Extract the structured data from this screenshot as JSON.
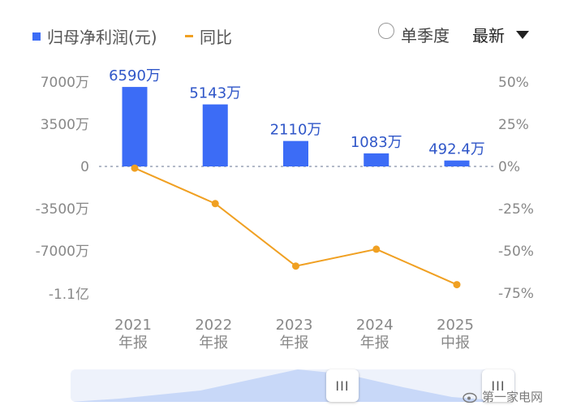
{
  "legend": {
    "bar_label": "归母净利润(元)",
    "line_label": "同比"
  },
  "controls": {
    "quarter_toggle_label": "单季度",
    "sort_value": "最新"
  },
  "slider": {
    "handle_glyph": "III"
  },
  "watermark": {
    "text": "第一家电网"
  },
  "colors": {
    "bar": "#3c6cf6",
    "line": "#f0a022",
    "axis_text": "#888888"
  },
  "chart_data": {
    "type": "bar",
    "categories": [
      [
        "2021",
        "年报"
      ],
      [
        "2022",
        "年报"
      ],
      [
        "2023",
        "年报"
      ],
      [
        "2024",
        "年报"
      ],
      [
        "2025",
        "中报"
      ]
    ],
    "series": [
      {
        "name": "归母净利润(元)",
        "type": "bar",
        "axis": "left",
        "values": [
          65900000,
          51430000,
          21100000,
          10830000,
          4924000
        ],
        "labels": [
          "6590万",
          "5143万",
          "2110万",
          "1083万",
          "492.4万"
        ]
      },
      {
        "name": "同比",
        "type": "line",
        "axis": "right",
        "values": [
          -1.0,
          -22.0,
          -59.0,
          -49.0,
          -70.0
        ]
      }
    ],
    "left_axis": {
      "ticks": [
        70000000,
        35000000,
        0,
        -35000000,
        -70000000,
        -110000000
      ],
      "tick_labels": [
        "7000万",
        "3500万",
        "0",
        "-3500万",
        "-7000万",
        "-1.1亿"
      ]
    },
    "right_axis": {
      "ticks": [
        50,
        25,
        0,
        -25,
        -50,
        -75
      ],
      "tick_labels": [
        "50%",
        "25%",
        "0%",
        "-25%",
        "-50%",
        "-75%"
      ]
    },
    "zero_line": "dashed"
  }
}
